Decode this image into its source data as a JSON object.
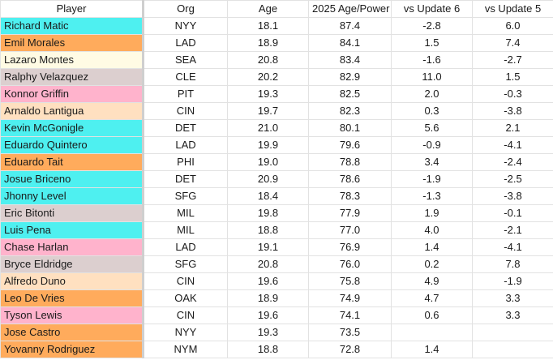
{
  "colors": {
    "cyan": "#4ef0f0",
    "orange": "#ffab5c",
    "cream": "#fffbe4",
    "mauve": "#dccfcf",
    "pink": "#ffb3cc",
    "peach": "#ffe0c0"
  },
  "headers": [
    "Player",
    "Org",
    "Age",
    "2025 Age/Power",
    "vs Update 6",
    "vs Update 5"
  ],
  "rows": [
    {
      "player": "Richard Matic",
      "color": "cyan",
      "org": "NYY",
      "age": "18.1",
      "power": "87.4",
      "u6": "-2.8",
      "u5": "6.0"
    },
    {
      "player": "Emil Morales",
      "color": "orange",
      "org": "LAD",
      "age": "18.9",
      "power": "84.1",
      "u6": "1.5",
      "u5": "7.4"
    },
    {
      "player": "Lazaro Montes",
      "color": "cream",
      "org": "SEA",
      "age": "20.8",
      "power": "83.4",
      "u6": "-1.6",
      "u5": "-2.7"
    },
    {
      "player": "Ralphy Velazquez",
      "color": "mauve",
      "org": "CLE",
      "age": "20.2",
      "power": "82.9",
      "u6": "11.0",
      "u5": "1.5"
    },
    {
      "player": "Konnor Griffin",
      "color": "pink",
      "org": "PIT",
      "age": "19.3",
      "power": "82.5",
      "u6": "2.0",
      "u5": "-0.3"
    },
    {
      "player": "Arnaldo Lantigua",
      "color": "peach",
      "org": "CIN",
      "age": "19.7",
      "power": "82.3",
      "u6": "0.3",
      "u5": "-3.8"
    },
    {
      "player": "Kevin McGonigle",
      "color": "cyan",
      "org": "DET",
      "age": "21.0",
      "power": "80.1",
      "u6": "5.6",
      "u5": "2.1"
    },
    {
      "player": "Eduardo Quintero",
      "color": "cyan",
      "org": "LAD",
      "age": "19.9",
      "power": "79.6",
      "u6": "-0.9",
      "u5": "-4.1"
    },
    {
      "player": "Eduardo Tait",
      "color": "orange",
      "org": "PHI",
      "age": "19.0",
      "power": "78.8",
      "u6": "3.4",
      "u5": "-2.4"
    },
    {
      "player": "Josue Briceno",
      "color": "cyan",
      "org": "DET",
      "age": "20.9",
      "power": "78.6",
      "u6": "-1.9",
      "u5": "-2.5"
    },
    {
      "player": "Jhonny Level",
      "color": "cyan",
      "org": "SFG",
      "age": "18.4",
      "power": "78.3",
      "u6": "-1.3",
      "u5": "-3.8"
    },
    {
      "player": "Eric Bitonti",
      "color": "mauve",
      "org": "MIL",
      "age": "19.8",
      "power": "77.9",
      "u6": "1.9",
      "u5": "-0.1"
    },
    {
      "player": "Luis Pena",
      "color": "cyan",
      "org": "MIL",
      "age": "18.8",
      "power": "77.0",
      "u6": "4.0",
      "u5": "-2.1"
    },
    {
      "player": "Chase Harlan",
      "color": "pink",
      "org": "LAD",
      "age": "19.1",
      "power": "76.9",
      "u6": "1.4",
      "u5": "-4.1"
    },
    {
      "player": "Bryce Eldridge",
      "color": "mauve",
      "org": "SFG",
      "age": "20.8",
      "power": "76.0",
      "u6": "0.2",
      "u5": "7.8"
    },
    {
      "player": "Alfredo Duno",
      "color": "peach",
      "org": "CIN",
      "age": "19.6",
      "power": "75.8",
      "u6": "4.9",
      "u5": "-1.9"
    },
    {
      "player": "Leo De Vries",
      "color": "orange",
      "org": "OAK",
      "age": "18.9",
      "power": "74.9",
      "u6": "4.7",
      "u5": "3.3"
    },
    {
      "player": "Tyson Lewis",
      "color": "pink",
      "org": "CIN",
      "age": "19.6",
      "power": "74.1",
      "u6": "0.6",
      "u5": "3.3"
    },
    {
      "player": "Jose Castro",
      "color": "orange",
      "org": "NYY",
      "age": "19.3",
      "power": "73.5",
      "u6": "",
      "u5": ""
    },
    {
      "player": "Yovanny Rodriguez",
      "color": "orange",
      "org": "NYM",
      "age": "18.8",
      "power": "72.8",
      "u6": "1.4",
      "u5": ""
    }
  ]
}
